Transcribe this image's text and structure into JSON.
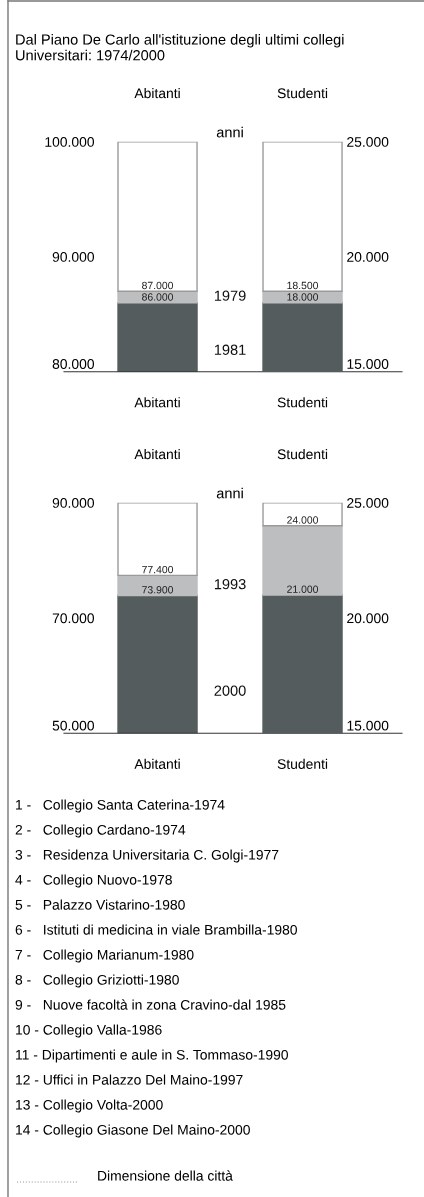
{
  "chart_data": [
    {
      "type": "bar",
      "title": "Dal Piano De Carlo all'istituzione degli ultimi collegi Universitari: 1974/2000",
      "categories": [
        "Abitanti"
      ],
      "legend_title": "anni",
      "ylim": [
        80000,
        100000
      ],
      "yticks": [
        {
          "value": 80000,
          "label": "80.000"
        },
        {
          "value": 90000,
          "label": "90.000"
        },
        {
          "value": 100000,
          "label": "100.000"
        }
      ],
      "grid": false,
      "legend": false,
      "series": [
        {
          "name": "1981",
          "color": "#545c5e",
          "base": [
            80000
          ],
          "values": [
            6000
          ]
        },
        {
          "name": "1979",
          "color": "#bcbec0",
          "base": [
            86000
          ],
          "values": [
            1000
          ]
        },
        {
          "color": "#ffffff",
          "base": [
            87000
          ],
          "values": [
            13000
          ]
        }
      ],
      "annotations": [
        {
          "text": "86.000",
          "x": "Abitanti",
          "y": 86000
        },
        {
          "text": "87.000",
          "x": "Abitanti",
          "y": 87000
        }
      ]
    },
    {
      "type": "bar",
      "categories": [
        "Studenti"
      ],
      "ylim": [
        15000,
        25000
      ],
      "yticks": [
        {
          "value": 15000,
          "label": "15.000"
        },
        {
          "value": 20000,
          "label": "20.000"
        },
        {
          "value": 25000,
          "label": "25.000"
        }
      ],
      "grid": false,
      "legend": false,
      "series": [
        {
          "color": "#545c5e",
          "base": [
            15000
          ],
          "values": [
            3000
          ]
        },
        {
          "color": "#bcbec0",
          "base": [
            18000
          ],
          "values": [
            500
          ]
        },
        {
          "color": "#ffffff",
          "base": [
            18500
          ],
          "values": [
            6500
          ]
        }
      ],
      "annotations": [
        {
          "text": "18.000",
          "x": "Studenti",
          "y": 18000
        },
        {
          "text": "18.500",
          "x": "Studenti",
          "y": 18500
        }
      ]
    },
    {
      "type": "bar",
      "categories": [
        "Abitanti"
      ],
      "legend_title": "anni",
      "ylim": [
        50000,
        90000
      ],
      "yticks": [
        {
          "value": 50000,
          "label": "50.000"
        },
        {
          "value": 70000,
          "label": "70.000"
        },
        {
          "value": 90000,
          "label": "90.000"
        }
      ],
      "grid": false,
      "legend": false,
      "series": [
        {
          "name": "2000",
          "color": "#545c5e",
          "base": [
            50000
          ],
          "values": [
            23900
          ]
        },
        {
          "name": "1993",
          "color": "#bcbec0",
          "base": [
            73900
          ],
          "values": [
            3500
          ]
        },
        {
          "color": "#ffffff",
          "base": [
            77400
          ],
          "values": [
            12600
          ]
        }
      ],
      "annotations": [
        {
          "text": "73.900",
          "x": "Abitanti",
          "y": 73900
        },
        {
          "text": "77.400",
          "x": "Abitanti",
          "y": 77400
        }
      ]
    },
    {
      "type": "bar",
      "categories": [
        "Studenti"
      ],
      "ylim": [
        15000,
        25000
      ],
      "yticks": [
        {
          "value": 15000,
          "label": "15.000"
        },
        {
          "value": 20000,
          "label": "20.000"
        },
        {
          "value": 25000,
          "label": "25.000"
        }
      ],
      "grid": false,
      "legend": false,
      "series": [
        {
          "color": "#545c5e",
          "base": [
            15000
          ],
          "values": [
            6000
          ]
        },
        {
          "color": "#bcbec0",
          "base": [
            21000
          ],
          "values": [
            3000
          ]
        },
        {
          "color": "#ffffff",
          "base": [
            24000
          ],
          "values": [
            1000
          ]
        }
      ],
      "annotations": [
        {
          "text": "21.000",
          "x": "Studenti",
          "y": 21000
        },
        {
          "text": "24.000",
          "x": "Studenti",
          "y": 24000
        },
        "1 -   Collegio Santa Caterina-1974",
        "2 -   Collegio Cardano-1974",
        "3 -   Residenza Universitaria C. Golgi-1977",
        "4 -   Collegio Nuovo-1978",
        "5 -   Palazzo Vistarino-1980",
        "6 -   Istituti di medicina in viale Brambilla-1980",
        "7 -   Collegio Marianum-1980",
        "8 -   Collegio Griziotti-1980",
        "9 -   Nuove facoltà in zona Cravino-dal 1985",
        "10 - Collegio Valla-1986",
        "11 - Dipartimenti e aule in S. Tommaso-1990",
        "12 - Uffici in Palazzo Del Maino-1997",
        "13 - Collegio Volta-2000",
        "14 - Collegio Giasone Del Maino-2000",
        "Dimensione della città"
      ]
    }
  ]
}
